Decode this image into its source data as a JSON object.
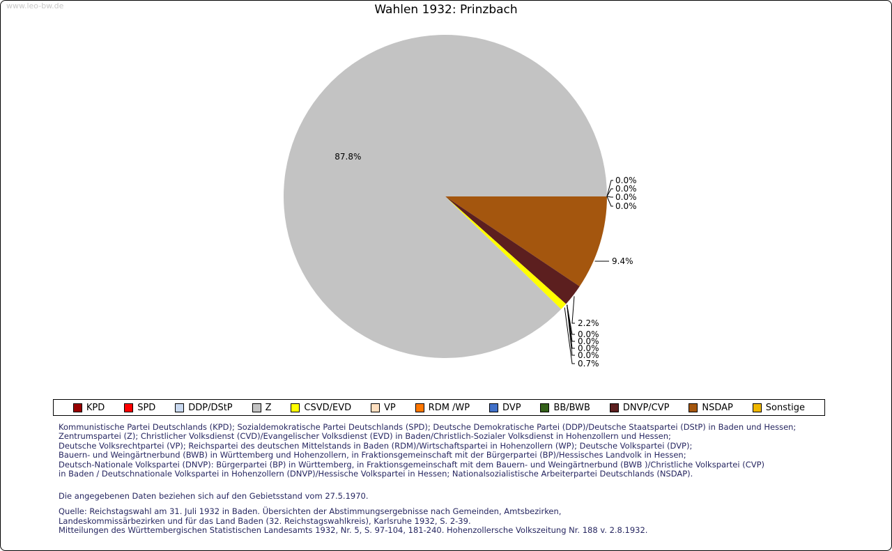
{
  "watermark": "www.leo-bw.de",
  "title": "Wahlen 1932: Prinzbach",
  "chart_data": {
    "type": "pie",
    "title": "Wahlen 1932: Prinzbach",
    "unit": "%",
    "legend_position": "bottom",
    "slices": [
      {
        "label": "KPD",
        "value": 0.0,
        "color": "#990000"
      },
      {
        "label": "SPD",
        "value": 0.0,
        "color": "#ff0000"
      },
      {
        "label": "DDP/DStP",
        "value": 0.0,
        "color": "#c9d9f0"
      },
      {
        "label": "Z",
        "value": 87.8,
        "color": "#c3c3c3"
      },
      {
        "label": "CSVD/EVD",
        "value": 0.7,
        "color": "#ffff00"
      },
      {
        "label": "VP",
        "value": 0.0,
        "color": "#ffdfbf"
      },
      {
        "label": "RDM /WP",
        "value": 0.0,
        "color": "#ff7700"
      },
      {
        "label": "DVP",
        "value": 0.0,
        "color": "#4070c8"
      },
      {
        "label": "BB/BWB",
        "value": 0.0,
        "color": "#336019"
      },
      {
        "label": "DNVP/CVP",
        "value": 2.2,
        "color": "#5c1f1f"
      },
      {
        "label": "NSDAP",
        "value": 9.4,
        "color": "#a4560e"
      },
      {
        "label": "Sonstige",
        "value": 0.0,
        "color": "#efb700"
      }
    ],
    "draw_order_clockwise_from_east": [
      "Sonstige",
      "NSDAP",
      "DNVP/CVP",
      "BB/BWB",
      "DVP",
      "RDM /WP",
      "VP",
      "CSVD/EVD",
      "Z",
      "DDP/DStP",
      "SPD",
      "KPD"
    ]
  },
  "notes": {
    "parties": "Kommunistische Partei Deutschlands (KPD); Sozialdemokratische Partei Deutschlands (SPD); Deutsche Demokratische Partei (DDP)/Deutsche Staatspartei (DStP) in Baden und Hessen;\nZentrumspartei (Z); Christlicher Volksdienst (CVD)/Evangelischer Volksdienst (EVD) in Baden/Christlich-Sozialer Volksdienst in Hohenzollern und Hessen;\nDeutsche Volksrechtpartei (VP); Reichspartei des deutschen Mittelstands in Baden (RDM)/Wirtschaftspartei in Hohenzollern (WP); Deutsche Volkspartei (DVP);\nBauern- und Weingärtnerbund (BWB) in Württemberg und Hohenzollern, in Fraktionsgemeinschaft mit der Bürgerpartei (BP)/Hessisches Landvolk in Hessen;\nDeutsch-Nationale Volkspartei (DNVP): Bürgerpartei (BP) in Württemberg, in Fraktionsgemeinschaft mit dem Bauern- und Weingärtnerbund (BWB )/Christliche Volkspartei (CVP)\nin Baden / Deutschnationale Volkspartei in Hohenzollern (DNVP)/Hessische Volkspartei in Hessen; Nationalsozialistische Arbeiterpartei Deutschlands (NSDAP).",
    "territory": "Die angegebenen Daten beziehen sich auf den Gebietsstand vom 27.5.1970.",
    "source": "Quelle: Reichstagswahl am 31. Juli 1932 in Baden. Übersichten der Abstimmungsergebnisse nach Gemeinden, Amtsbezirken,\nLandeskommissärbezirken und für das Land Baden (32. Reichstagswahlkreis), Karlsruhe 1932, S. 2-39.\nMitteilungen des Württembergischen Statistischen Landesamts 1932, Nr. 5, S. 97-104, 181-240. Hohenzollersche Volkszeitung Nr. 188 v. 2.8.1932."
  }
}
